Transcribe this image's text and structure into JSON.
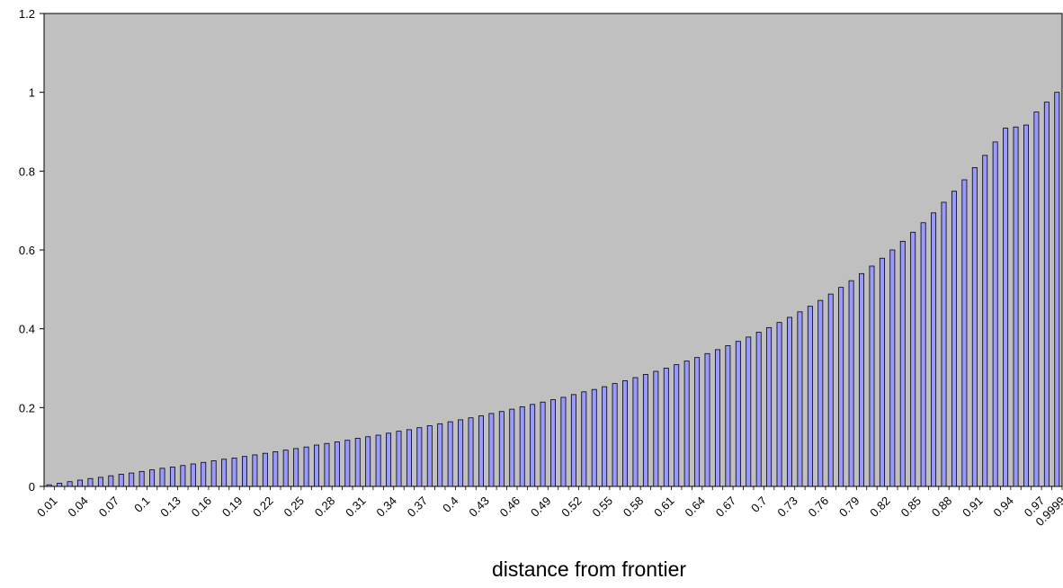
{
  "chart_data": {
    "type": "bar",
    "title": "",
    "xlabel": "distance from frontier",
    "ylabel": "",
    "ylim": [
      0,
      1.2
    ],
    "yticks": [
      0,
      0.2,
      0.4,
      0.6,
      0.8,
      1,
      1.2
    ],
    "grid": false,
    "legend": "none",
    "categories": [
      "0.01",
      "0.02",
      "0.03",
      "0.04",
      "0.05",
      "0.06",
      "0.07",
      "0.08",
      "0.09",
      "0.1",
      "0.11",
      "0.12",
      "0.13",
      "0.14",
      "0.15",
      "0.16",
      "0.17",
      "0.18",
      "0.19",
      "0.2",
      "0.21",
      "0.22",
      "0.23",
      "0.24",
      "0.25",
      "0.26",
      "0.27",
      "0.28",
      "0.29",
      "0.3",
      "0.31",
      "0.32",
      "0.33",
      "0.34",
      "0.35",
      "0.36",
      "0.37",
      "0.38",
      "0.39",
      "0.4",
      "0.41",
      "0.42",
      "0.43",
      "0.44",
      "0.45",
      "0.46",
      "0.47",
      "0.48",
      "0.49",
      "0.5",
      "0.51",
      "0.52",
      "0.53",
      "0.54",
      "0.55",
      "0.56",
      "0.57",
      "0.58",
      "0.59",
      "0.6",
      "0.61",
      "0.62",
      "0.63",
      "0.64",
      "0.65",
      "0.66",
      "0.67",
      "0.68",
      "0.69",
      "0.7",
      "0.71",
      "0.72",
      "0.73",
      "0.74",
      "0.75",
      "0.76",
      "0.77",
      "0.78",
      "0.79",
      "0.8",
      "0.81",
      "0.82",
      "0.83",
      "0.84",
      "0.85",
      "0.86",
      "0.87",
      "0.88",
      "0.89",
      "0.9",
      "0.91",
      "0.92",
      "0.93",
      "0.94",
      "0.95",
      "0.96",
      "0.97",
      "0.98",
      "0.9999"
    ],
    "values": [
      0.004,
      0.008,
      0.012,
      0.016,
      0.02,
      0.023,
      0.027,
      0.031,
      0.034,
      0.038,
      0.042,
      0.046,
      0.049,
      0.053,
      0.057,
      0.061,
      0.065,
      0.069,
      0.072,
      0.076,
      0.08,
      0.084,
      0.088,
      0.092,
      0.096,
      0.1,
      0.105,
      0.109,
      0.113,
      0.117,
      0.122,
      0.126,
      0.13,
      0.135,
      0.14,
      0.144,
      0.149,
      0.154,
      0.159,
      0.164,
      0.169,
      0.174,
      0.179,
      0.185,
      0.19,
      0.196,
      0.202,
      0.208,
      0.214,
      0.22,
      0.226,
      0.233,
      0.24,
      0.246,
      0.253,
      0.261,
      0.268,
      0.276,
      0.284,
      0.292,
      0.3,
      0.309,
      0.318,
      0.327,
      0.337,
      0.347,
      0.357,
      0.368,
      0.379,
      0.391,
      0.403,
      0.416,
      0.429,
      0.443,
      0.457,
      0.472,
      0.488,
      0.505,
      0.522,
      0.54,
      0.559,
      0.579,
      0.6,
      0.622,
      0.645,
      0.669,
      0.694,
      0.721,
      0.749,
      0.778,
      0.809,
      0.84,
      0.874,
      0.909,
      0.912,
      0.917,
      0.95,
      0.975,
      1.0
    ],
    "x_tick_labels_shown": [
      "0.01",
      "0.04",
      "0.07",
      "0.1",
      "0.13",
      "0.16",
      "0.19",
      "0.22",
      "0.25",
      "0.28",
      "0.31",
      "0.34",
      "0.37",
      "0.4",
      "0.43",
      "0.46",
      "0.49",
      "0.52",
      "0.55",
      "0.58",
      "0.61",
      "0.64",
      "0.67",
      "0.7",
      "0.73",
      "0.76",
      "0.79",
      "0.82",
      "0.85",
      "0.88",
      "0.91",
      "0.94",
      "0.97",
      "0.9999"
    ],
    "colors": {
      "plot_background": "#c0c0c0",
      "bar_fill": "#9999ff",
      "bar_stroke": "#000000",
      "axis": "#000000"
    }
  }
}
